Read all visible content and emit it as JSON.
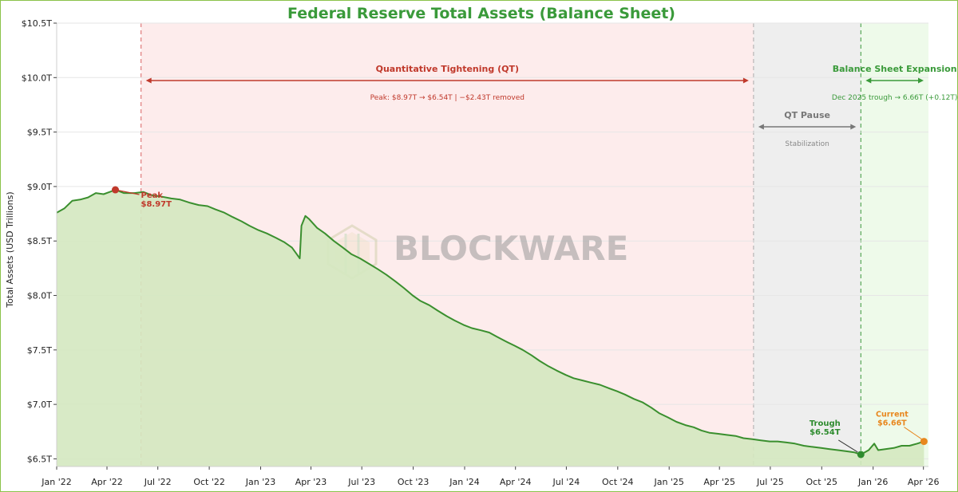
{
  "chart_data": {
    "type": "area",
    "title": "Federal Reserve Total Assets (Balance Sheet)",
    "xlabel": "",
    "ylabel": "Total Assets (USD Trillions)",
    "ylim": [
      6.43,
      10.5
    ],
    "xlim": [
      "2022-01-01",
      "2026-04-10"
    ],
    "y_ticks": [
      {
        "value": 6.5,
        "label": "$6.5T"
      },
      {
        "value": 7.0,
        "label": "$7.0T"
      },
      {
        "value": 7.5,
        "label": "$7.5T"
      },
      {
        "value": 8.0,
        "label": "$8.0T"
      },
      {
        "value": 8.5,
        "label": "$8.5T"
      },
      {
        "value": 9.0,
        "label": "$9.0T"
      },
      {
        "value": 9.5,
        "label": "$9.5T"
      },
      {
        "value": 10.0,
        "label": "$10.0T"
      },
      {
        "value": 10.5,
        "label": "$10.5T"
      }
    ],
    "x_ticks": [
      {
        "date": "2022-01-01",
        "label": "Jan '22"
      },
      {
        "date": "2022-04-01",
        "label": "Apr '22"
      },
      {
        "date": "2022-07-01",
        "label": "Jul '22"
      },
      {
        "date": "2022-10-01",
        "label": "Oct '22"
      },
      {
        "date": "2023-01-01",
        "label": "Jan '23"
      },
      {
        "date": "2023-04-01",
        "label": "Apr '23"
      },
      {
        "date": "2023-07-01",
        "label": "Jul '23"
      },
      {
        "date": "2023-10-01",
        "label": "Oct '23"
      },
      {
        "date": "2024-01-01",
        "label": "Jan '24"
      },
      {
        "date": "2024-04-01",
        "label": "Apr '24"
      },
      {
        "date": "2024-07-01",
        "label": "Jul '24"
      },
      {
        "date": "2024-10-01",
        "label": "Oct '24"
      },
      {
        "date": "2025-01-01",
        "label": "Jan '25"
      },
      {
        "date": "2025-04-01",
        "label": "Apr '25"
      },
      {
        "date": "2025-07-01",
        "label": "Jul '25"
      },
      {
        "date": "2025-10-01",
        "label": "Oct '25"
      },
      {
        "date": "2026-01-01",
        "label": "Jan '26"
      },
      {
        "date": "2026-04-01",
        "label": "Apr '26"
      }
    ],
    "series": [
      {
        "color": "#3a8f2e",
        "fill": "#d4e8c0",
        "points": [
          [
            "2022-01-01",
            8.76
          ],
          [
            "2022-01-15",
            8.8
          ],
          [
            "2022-01-29",
            8.87
          ],
          [
            "2022-02-12",
            8.88
          ],
          [
            "2022-02-26",
            8.9
          ],
          [
            "2022-03-12",
            8.94
          ],
          [
            "2022-03-26",
            8.93
          ],
          [
            "2022-04-06",
            8.95
          ],
          [
            "2022-04-16",
            8.97
          ],
          [
            "2022-05-01",
            8.94
          ],
          [
            "2022-05-20",
            8.94
          ],
          [
            "2022-06-05",
            8.95
          ],
          [
            "2022-06-20",
            8.92
          ],
          [
            "2022-07-05",
            8.91
          ],
          [
            "2022-07-25",
            8.89
          ],
          [
            "2022-08-10",
            8.88
          ],
          [
            "2022-08-28",
            8.85
          ],
          [
            "2022-09-12",
            8.83
          ],
          [
            "2022-09-28",
            8.82
          ],
          [
            "2022-10-12",
            8.79
          ],
          [
            "2022-10-28",
            8.76
          ],
          [
            "2022-11-12",
            8.72
          ],
          [
            "2022-11-28",
            8.68
          ],
          [
            "2022-12-12",
            8.64
          ],
          [
            "2022-12-28",
            8.6
          ],
          [
            "2023-01-12",
            8.57
          ],
          [
            "2023-01-28",
            8.53
          ],
          [
            "2023-02-12",
            8.49
          ],
          [
            "2023-02-26",
            8.44
          ],
          [
            "2023-03-05",
            8.39
          ],
          [
            "2023-03-12",
            8.34
          ],
          [
            "2023-03-15",
            8.64
          ],
          [
            "2023-03-22",
            8.73
          ],
          [
            "2023-03-29",
            8.7
          ],
          [
            "2023-04-12",
            8.62
          ],
          [
            "2023-04-26",
            8.57
          ],
          [
            "2023-05-12",
            8.5
          ],
          [
            "2023-05-28",
            8.44
          ],
          [
            "2023-06-12",
            8.38
          ],
          [
            "2023-06-28",
            8.34
          ],
          [
            "2023-07-14",
            8.29
          ],
          [
            "2023-07-30",
            8.24
          ],
          [
            "2023-08-14",
            8.19
          ],
          [
            "2023-08-30",
            8.13
          ],
          [
            "2023-09-14",
            8.07
          ],
          [
            "2023-09-30",
            8.0
          ],
          [
            "2023-10-14",
            7.95
          ],
          [
            "2023-10-30",
            7.91
          ],
          [
            "2023-11-14",
            7.86
          ],
          [
            "2023-11-30",
            7.81
          ],
          [
            "2023-12-14",
            7.77
          ],
          [
            "2023-12-30",
            7.73
          ],
          [
            "2024-01-14",
            7.7
          ],
          [
            "2024-01-30",
            7.68
          ],
          [
            "2024-02-14",
            7.66
          ],
          [
            "2024-02-28",
            7.62
          ],
          [
            "2024-03-14",
            7.58
          ],
          [
            "2024-03-30",
            7.54
          ],
          [
            "2024-04-14",
            7.5
          ],
          [
            "2024-04-30",
            7.45
          ],
          [
            "2024-05-14",
            7.4
          ],
          [
            "2024-05-30",
            7.35
          ],
          [
            "2024-06-14",
            7.31
          ],
          [
            "2024-06-30",
            7.27
          ],
          [
            "2024-07-14",
            7.24
          ],
          [
            "2024-07-30",
            7.22
          ],
          [
            "2024-08-14",
            7.2
          ],
          [
            "2024-08-30",
            7.18
          ],
          [
            "2024-09-14",
            7.15
          ],
          [
            "2024-09-30",
            7.12
          ],
          [
            "2024-10-14",
            7.09
          ],
          [
            "2024-10-30",
            7.05
          ],
          [
            "2024-11-14",
            7.02
          ],
          [
            "2024-11-30",
            6.97
          ],
          [
            "2024-12-14",
            6.92
          ],
          [
            "2024-12-30",
            6.88
          ],
          [
            "2025-01-14",
            6.84
          ],
          [
            "2025-01-30",
            6.81
          ],
          [
            "2025-02-14",
            6.79
          ],
          [
            "2025-02-28",
            6.76
          ],
          [
            "2025-03-14",
            6.74
          ],
          [
            "2025-03-30",
            6.73
          ],
          [
            "2025-04-14",
            6.72
          ],
          [
            "2025-04-30",
            6.71
          ],
          [
            "2025-05-14",
            6.69
          ],
          [
            "2025-05-30",
            6.68
          ],
          [
            "2025-06-14",
            6.67
          ],
          [
            "2025-06-30",
            6.66
          ],
          [
            "2025-07-14",
            6.66
          ],
          [
            "2025-07-30",
            6.65
          ],
          [
            "2025-08-14",
            6.64
          ],
          [
            "2025-08-30",
            6.62
          ],
          [
            "2025-09-14",
            6.61
          ],
          [
            "2025-09-30",
            6.6
          ],
          [
            "2025-10-14",
            6.59
          ],
          [
            "2025-10-30",
            6.58
          ],
          [
            "2025-11-14",
            6.57
          ],
          [
            "2025-11-28",
            6.56
          ],
          [
            "2025-12-10",
            6.54
          ],
          [
            "2025-12-24",
            6.58
          ],
          [
            "2026-01-03",
            6.64
          ],
          [
            "2026-01-10",
            6.58
          ],
          [
            "2026-01-24",
            6.59
          ],
          [
            "2026-02-07",
            6.6
          ],
          [
            "2026-02-21",
            6.62
          ],
          [
            "2026-03-07",
            6.62
          ],
          [
            "2026-03-21",
            6.64
          ],
          [
            "2026-04-02",
            6.66
          ]
        ]
      }
    ],
    "regions": [
      {
        "start": "2022-06-01",
        "end": "2025-06-01",
        "color": "#fdecec",
        "line_color": "#d86060",
        "label": "Quantitative Tightening (QT)",
        "sublabel": "Peak: $8.97T → $6.54T  |  −$2.43T removed",
        "label_color": "#c0392b",
        "sublabel_color": "#c0392b"
      },
      {
        "start": "2025-06-01",
        "end": "2025-12-10",
        "color": "#eeeeee",
        "line_color": "#aaaaaa",
        "label": "QT Pause",
        "sublabel": "Stabilization",
        "label_color": "#777777",
        "sublabel_color": "#888888"
      },
      {
        "start": "2025-12-10",
        "end": "2026-04-10",
        "color": "#eefaea",
        "line_color": "#3a9a3a",
        "label": "Balance Sheet Expansion",
        "sublabel": "Dec 2025 trough → 6.66T (+0.12T)",
        "label_color": "#3a9a3a",
        "sublabel_color": "#3a9a3a"
      }
    ],
    "annotations": [
      {
        "kind": "peak",
        "label": "Peak",
        "value_label": "$8.97T",
        "date": "2022-04-16",
        "value": 8.97,
        "color": "#c0392b"
      },
      {
        "kind": "trough",
        "label": "Trough",
        "value_label": "$6.54T",
        "date": "2025-12-10",
        "value": 6.54,
        "color": "#2e8b2e"
      },
      {
        "kind": "current",
        "label": "Current",
        "value_label": "$6.66T",
        "date": "2026-04-02",
        "value": 6.66,
        "color": "#e8871e"
      }
    ],
    "watermark": "BLOCKWARE",
    "grid": true
  }
}
